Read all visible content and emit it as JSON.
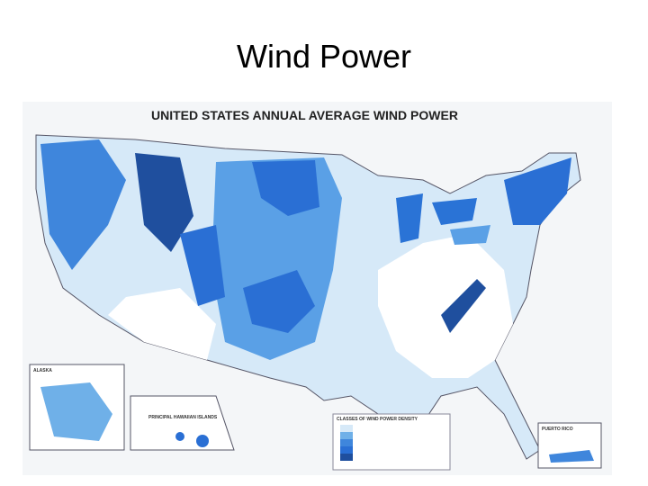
{
  "slide": {
    "title": "Wind Power"
  },
  "map": {
    "title": "UNITED STATES ANNUAL AVERAGE WIND POWER",
    "insets": [
      "ALASKA",
      "PRINCIPAL HAWAIIAN ISLANDS",
      "PUERTO RICO"
    ],
    "legend_title": "CLASSES OF WIND POWER DENSITY"
  }
}
